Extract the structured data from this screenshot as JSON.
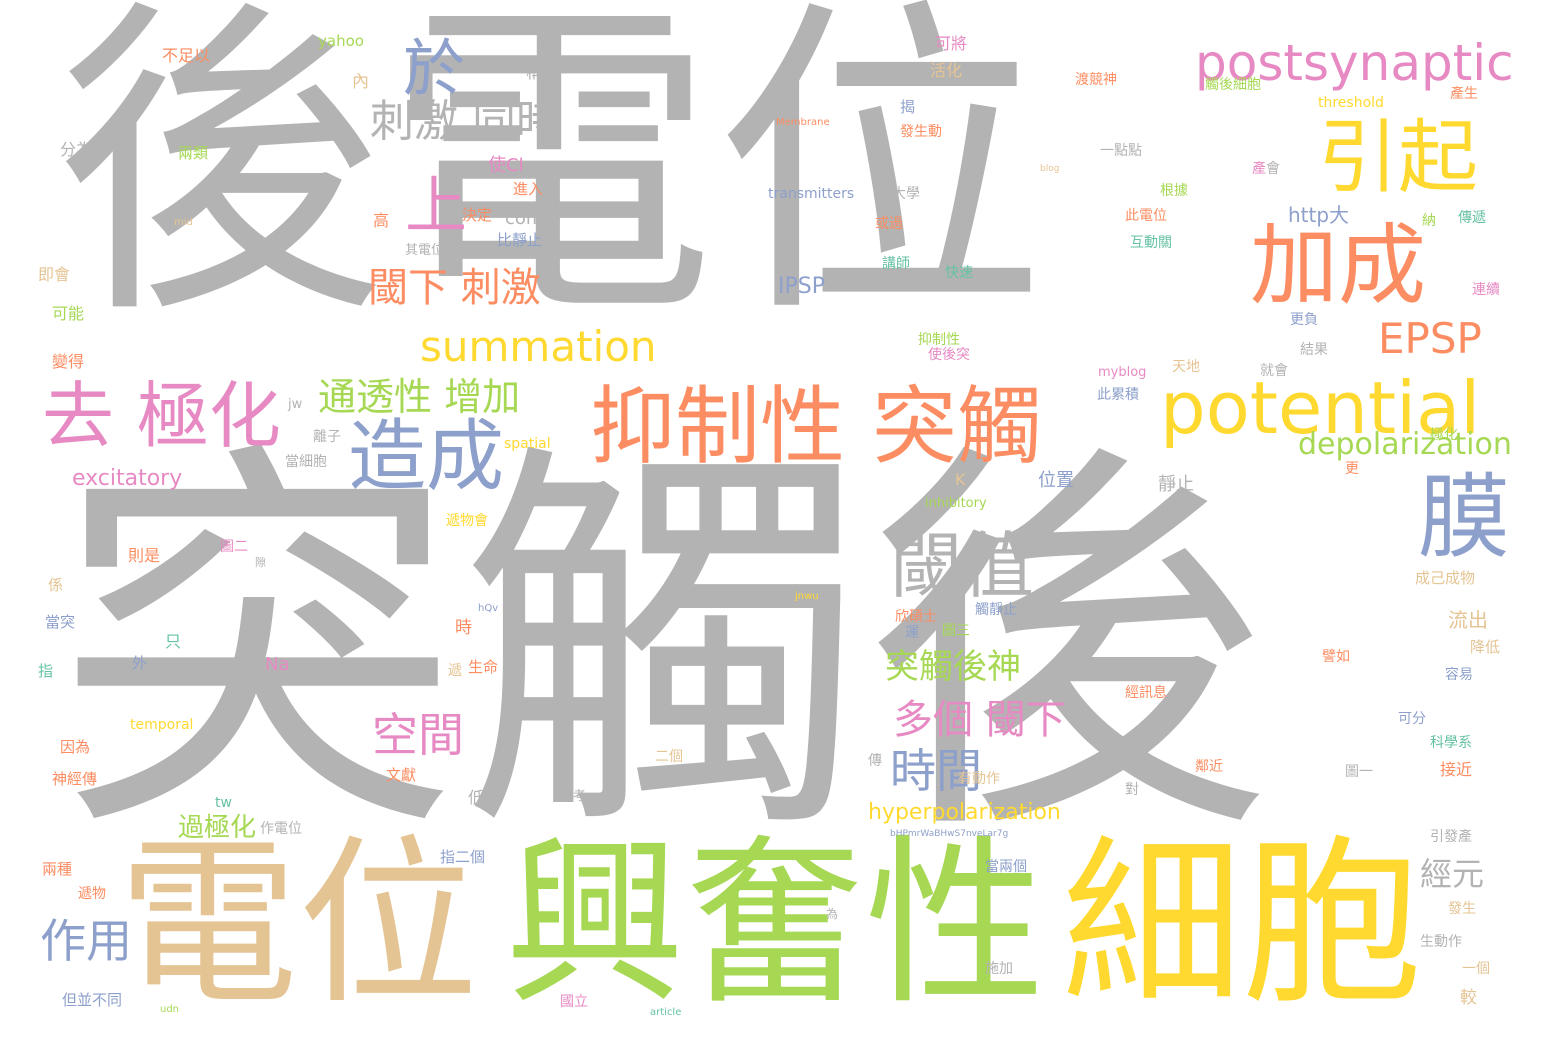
{
  "palette": {
    "gray": "#b3b3b3",
    "orange": "#fc8d62",
    "blue": "#8da0cb",
    "pink": "#e78ac3",
    "green": "#a6d854",
    "yellow": "#ffd92f",
    "tan": "#e5c494",
    "teal": "#66c2a5"
  },
  "words": [
    {
      "text": "後電位"
    },
    {
      "text": "突觸後"
    },
    {
      "text": "電位"
    },
    {
      "text": "興奮性"
    },
    {
      "text": "細胞"
    },
    {
      "text": "抑制性 突觸"
    },
    {
      "text": "potential"
    },
    {
      "text": "加成"
    },
    {
      "text": "引起"
    },
    {
      "text": "postsynaptic"
    },
    {
      "text": "去 極化"
    },
    {
      "text": "造成"
    },
    {
      "text": "膜"
    },
    {
      "text": "閾值"
    },
    {
      "text": "summation"
    },
    {
      "text": "EPSP"
    },
    {
      "text": "於"
    },
    {
      "text": "上"
    },
    {
      "text": "刺激 同時"
    },
    {
      "text": "閾下 刺激"
    },
    {
      "text": "通透性 增加"
    },
    {
      "text": "depolarization"
    },
    {
      "text": "空間"
    },
    {
      "text": "時間"
    },
    {
      "text": "多個 閾下"
    },
    {
      "text": "突觸後神"
    },
    {
      "text": "作用"
    },
    {
      "text": "hyperpolarization"
    },
    {
      "text": "經元"
    },
    {
      "text": "過極化"
    },
    {
      "text": "excitatory"
    },
    {
      "text": "IPSP"
    },
    {
      "text": "http大"
    },
    {
      "text": "com"
    },
    {
      "text": "transmitters"
    },
    {
      "text": "threshold"
    },
    {
      "text": "Membrane"
    },
    {
      "text": "yahoo"
    },
    {
      "text": "不足以"
    },
    {
      "text": "可將"
    },
    {
      "text": "活化"
    },
    {
      "text": "稱為"
    },
    {
      "text": "內"
    },
    {
      "text": "分為"
    },
    {
      "text": "兩類"
    },
    {
      "text": "使Cl"
    },
    {
      "text": "進入"
    },
    {
      "text": "高"
    },
    {
      "text": "決定"
    },
    {
      "text": "其電位"
    },
    {
      "text": "比靜止"
    },
    {
      "text": "即會"
    },
    {
      "text": "可能"
    },
    {
      "text": "變得"
    },
    {
      "text": "mid"
    },
    {
      "text": "jw"
    },
    {
      "text": "離子"
    },
    {
      "text": "當細胞"
    },
    {
      "text": "spatial"
    },
    {
      "text": "K"
    },
    {
      "text": "inhibitory"
    },
    {
      "text": "位置"
    },
    {
      "text": "靜止"
    },
    {
      "text": "遞物會"
    },
    {
      "text": "圖二"
    },
    {
      "text": "則是"
    },
    {
      "text": "係"
    },
    {
      "text": "當突"
    },
    {
      "text": "指"
    },
    {
      "text": "只"
    },
    {
      "text": "外"
    },
    {
      "text": "Na"
    },
    {
      "text": "時"
    },
    {
      "text": "生命"
    },
    {
      "text": "temporal"
    },
    {
      "text": "因為"
    },
    {
      "text": "神經傳"
    },
    {
      "text": "文獻"
    },
    {
      "text": "低"
    },
    {
      "text": "參考"
    },
    {
      "text": "tw"
    },
    {
      "text": "作電位"
    },
    {
      "text": "兩種"
    },
    {
      "text": "遞物"
    },
    {
      "text": "但並不同"
    },
    {
      "text": "udn"
    },
    {
      "text": "指二個"
    },
    {
      "text": "國立"
    },
    {
      "text": "article"
    },
    {
      "text": "二個"
    },
    {
      "text": "有動作"
    },
    {
      "text": "bHPmrWaBHwS7nveLar7g"
    },
    {
      "text": "當兩個"
    },
    {
      "text": "施加"
    },
    {
      "text": "為"
    },
    {
      "text": "欣碩士"
    },
    {
      "text": "圖三"
    },
    {
      "text": "觸靜止"
    },
    {
      "text": "jnwu"
    },
    {
      "text": "hQv"
    },
    {
      "text": "成己成物"
    },
    {
      "text": "流出"
    },
    {
      "text": "降低"
    },
    {
      "text": "容易"
    },
    {
      "text": "譬如"
    },
    {
      "text": "經訊息"
    },
    {
      "text": "鄰近"
    },
    {
      "text": "圖一"
    },
    {
      "text": "可分"
    },
    {
      "text": "科學系"
    },
    {
      "text": "接近"
    },
    {
      "text": "引發產"
    },
    {
      "text": "發生"
    },
    {
      "text": "生動作"
    },
    {
      "text": "一個"
    },
    {
      "text": "較"
    },
    {
      "text": "渡競神"
    },
    {
      "text": "觸後細胞"
    },
    {
      "text": "產生"
    },
    {
      "text": "發生動"
    },
    {
      "text": "揭"
    },
    {
      "text": "blog"
    },
    {
      "text": "一點點"
    },
    {
      "text": "會"
    },
    {
      "text": "根據"
    },
    {
      "text": "此電位"
    },
    {
      "text": "互動關"
    },
    {
      "text": "納"
    },
    {
      "text": "傳遞"
    },
    {
      "text": "連續"
    },
    {
      "text": "師大學"
    },
    {
      "text": "或過"
    },
    {
      "text": "講師"
    },
    {
      "text": "快速"
    },
    {
      "text": "更負"
    },
    {
      "text": "抑制性"
    },
    {
      "text": "使後突"
    },
    {
      "text": "天地"
    },
    {
      "text": "myblog"
    },
    {
      "text": "就會"
    },
    {
      "text": "此累積"
    },
    {
      "text": "結果"
    },
    {
      "text": "極化"
    },
    {
      "text": "更"
    },
    {
      "text": "對"
    },
    {
      "text": "傳"
    },
    {
      "text": "遞"
    },
    {
      "text": "運"
    },
    {
      "text": "隙"
    },
    {
      "text": "產"
    }
  ]
}
